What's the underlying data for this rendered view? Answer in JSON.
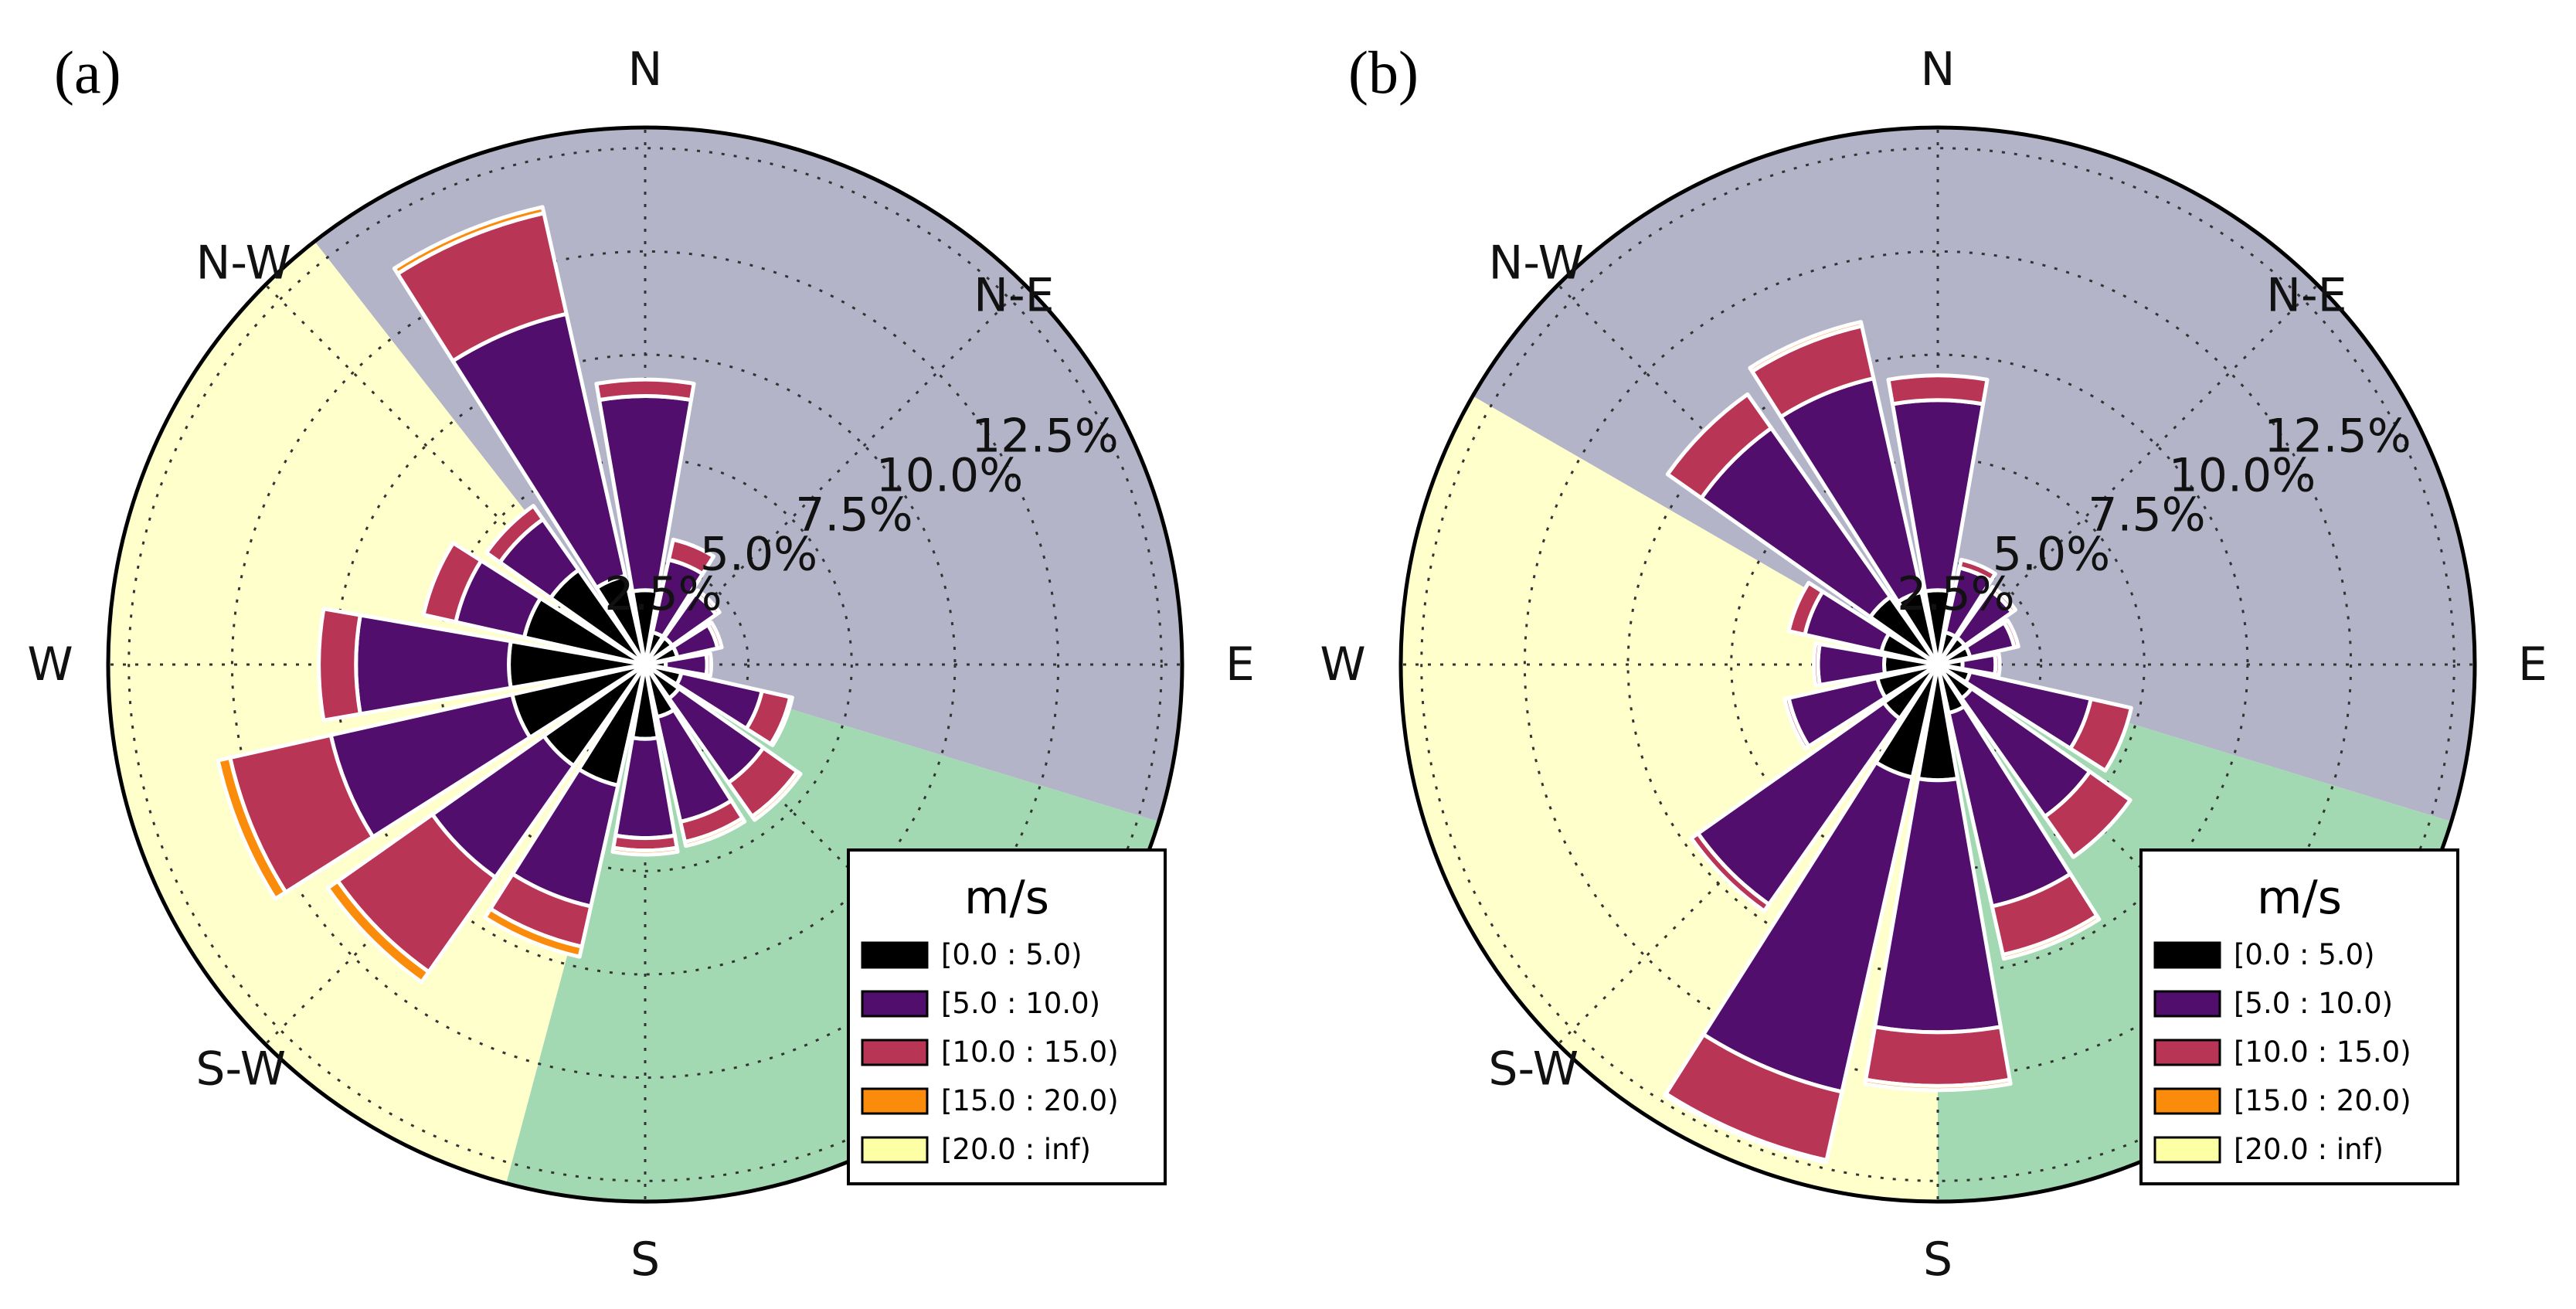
{
  "figure": {
    "panel_labels": [
      "(a)",
      "(b)"
    ]
  },
  "chart_data": [
    {
      "type": "windrose",
      "panel": "(a)",
      "units": "%",
      "directions": [
        "N",
        "NNE",
        "NE",
        "ENE",
        "E",
        "ESE",
        "SE",
        "SSE",
        "S",
        "SSW",
        "SW",
        "WSW",
        "W",
        "WNW",
        "NW",
        "NNW"
      ],
      "compass_labels": {
        "N": "N",
        "NE": "N-E",
        "E": "E",
        "SE": "",
        "S": "S",
        "SW": "S-W",
        "W": "W",
        "NW": "N-W"
      },
      "radial_ticks": [
        2.5,
        5.0,
        7.5,
        10.0,
        12.5
      ],
      "radial_tick_labels": [
        "2.5%",
        "5.0%",
        "7.5%",
        "10.0%",
        "12.5%"
      ],
      "rmax": 13.0,
      "sectors_bg": [
        {
          "name": "north-east sector",
          "from_deg": -38,
          "to_deg": 107,
          "color": "#b4b4c8"
        },
        {
          "name": "south-east sector",
          "from_deg": 107,
          "to_deg": 195,
          "color": "#a2d9b3"
        },
        {
          "name": "south-west sector",
          "from_deg": 195,
          "to_deg": 322,
          "color": "#ffffcc"
        }
      ],
      "series": [
        {
          "name": "[0.0 : 5.0)",
          "color": "#000000",
          "values": [
            1.8,
            0.8,
            0.8,
            0.8,
            0.5,
            0.9,
            1.0,
            1.3,
            1.8,
            3.0,
            3.0,
            3.3,
            3.3,
            3.0,
            2.8,
            2.2
          ]
        },
        {
          "name": "[5.0 : 10.0)",
          "color": "#510e6c",
          "values": [
            4.7,
            1.8,
            1.3,
            1.0,
            1.0,
            2.0,
            2.5,
            2.6,
            2.4,
            3.0,
            3.3,
            4.5,
            3.7,
            1.7,
            1.5,
            6.5
          ]
        },
        {
          "name": "[10.0 : 15.0)",
          "color": "#b93556",
          "values": [
            0.4,
            0.5,
            0.1,
            0.1,
            0.1,
            0.7,
            1.0,
            0.5,
            0.3,
            1.0,
            2.8,
            2.5,
            0.9,
            0.8,
            0.4,
            2.5
          ]
        },
        {
          "name": "[15.0 : 20.0)",
          "color": "#fb8b0b",
          "values": [
            0,
            0,
            0,
            0,
            0,
            0.05,
            0.1,
            0.1,
            0.1,
            0.25,
            0.3,
            0.3,
            0,
            0,
            0,
            0.15
          ]
        },
        {
          "name": "[20.0 : inf)",
          "color": "#fcffa4",
          "values": [
            0,
            0,
            0,
            0,
            0,
            0,
            0,
            0,
            0,
            0,
            0,
            0,
            0,
            0,
            0,
            0
          ]
        }
      ],
      "legend": {
        "title": "m/s",
        "placement": "bottom-right"
      }
    },
    {
      "type": "windrose",
      "panel": "(b)",
      "units": "%",
      "directions": [
        "N",
        "NNE",
        "NE",
        "ENE",
        "E",
        "ESE",
        "SE",
        "SSE",
        "S",
        "SSW",
        "SW",
        "WSW",
        "W",
        "WNW",
        "NW",
        "NNW"
      ],
      "compass_labels": {
        "N": "N",
        "NE": "N-E",
        "E": "E",
        "SE": "",
        "S": "S",
        "SW": "S-W",
        "W": "W",
        "NW": "N-W"
      },
      "radial_ticks": [
        2.5,
        5.0,
        7.5,
        10.0,
        12.5
      ],
      "radial_tick_labels": [
        "2.5%",
        "5.0%",
        "7.5%",
        "10.0%",
        "12.5%"
      ],
      "rmax": 13.0,
      "sectors_bg": [
        {
          "name": "north-east sector",
          "from_deg": -60,
          "to_deg": 107,
          "color": "#b4b4c8"
        },
        {
          "name": "south-east sector",
          "from_deg": 107,
          "to_deg": 180,
          "color": "#a2d9b3"
        },
        {
          "name": "south-west sector",
          "from_deg": 180,
          "to_deg": 300,
          "color": "#ffffcc"
        }
      ],
      "series": [
        {
          "name": "[0.0 : 5.0)",
          "color": "#000000",
          "values": [
            1.8,
            0.8,
            0.8,
            0.8,
            0.6,
            0.8,
            1.0,
            1.2,
            2.8,
            2.8,
            1.6,
            1.5,
            1.3,
            1.4,
            2.0,
            1.8
          ]
        },
        {
          "name": "[5.0 : 10.0)",
          "color": "#510e6c",
          "values": [
            4.6,
            1.6,
            1.4,
            1.1,
            0.8,
            3.0,
            3.5,
            4.8,
            6.1,
            7.8,
            5.5,
            2.2,
            1.6,
            1.9,
            5.0,
            5.3
          ]
        },
        {
          "name": "[10.0 : 15.0)",
          "color": "#b93556",
          "values": [
            0.6,
            0.2,
            0.1,
            0.1,
            0.1,
            1.0,
            1.2,
            1.2,
            1.3,
            1.7,
            0.2,
            0.1,
            0.1,
            0.4,
            1.0,
            1.3
          ]
        },
        {
          "name": "[15.0 : 20.0)",
          "color": "#fb8b0b",
          "values": [
            0,
            0,
            0,
            0,
            0,
            0,
            0,
            0.1,
            0.1,
            0.05,
            0,
            0,
            0,
            0,
            0,
            0.1
          ]
        },
        {
          "name": "[20.0 : inf)",
          "color": "#fcffa4",
          "values": [
            0,
            0,
            0,
            0,
            0,
            0,
            0,
            0,
            0,
            0,
            0,
            0,
            0,
            0,
            0,
            0
          ]
        }
      ],
      "legend": {
        "title": "m/s",
        "placement": "bottom-right"
      }
    }
  ]
}
